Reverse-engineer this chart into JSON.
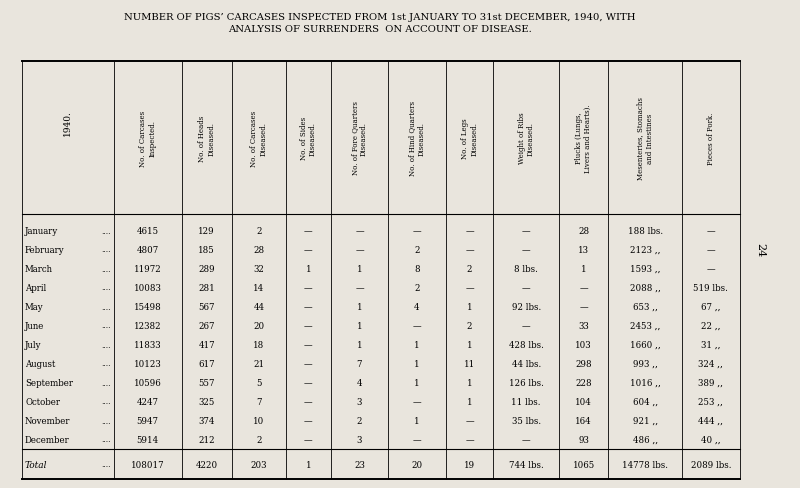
{
  "title_line1": "NUMBER OF PIGS’ CARCASES INSPECTED FROM 1st JANUARY TO 31st DECEMBER, 1940, WITH",
  "title_line2": "ANALYSIS OF SURRENDERS  ON ACCOUNT OF DISEASE.",
  "bg_color": "#e9e5dd",
  "col_headers": [
    "No. of Carcases\nInspected.",
    "No. of Heads\nDiseased.",
    "No. of Carcases\nDiseased.",
    "No. of Sides\nDiseased.",
    "No. of Fore Quarters\nDiseased.",
    "No. of Hind Quarters\nDiseased.",
    "No. of Legs\nDiseased.",
    "Weight of Ribs\nDiseased.",
    "Plucks (Lungs,\nLivers and Hearts).",
    "Mesenteries, Stomachs\nand Intestines",
    "Pieces of Pork."
  ],
  "row_label_header": "1940.",
  "months": [
    "January",
    "February",
    "March",
    "April",
    "May",
    "June",
    "July",
    "August",
    "September",
    "October",
    "November",
    "December"
  ],
  "data": [
    [
      "4615",
      "129",
      "2",
      "—",
      "—",
      "—",
      "—",
      "—",
      "28",
      "188 lbs.",
      "—"
    ],
    [
      "4807",
      "185",
      "28",
      "—",
      "—",
      "2",
      "—",
      "—",
      "13",
      "2123 ,,",
      "—"
    ],
    [
      "11972",
      "289",
      "32",
      "1",
      "1",
      "8",
      "2",
      "8 lbs.",
      "1",
      "1593 ,,",
      "—"
    ],
    [
      "10083",
      "281",
      "14",
      "—",
      "—",
      "2",
      "—",
      "—",
      "—",
      "2088 ,,",
      "519 lbs."
    ],
    [
      "15498",
      "567",
      "44",
      "—",
      "1",
      "4",
      "1",
      "92 lbs.",
      "—",
      "653 ,,",
      "67 ,,"
    ],
    [
      "12382",
      "267",
      "20",
      "—",
      "1",
      "—",
      "2",
      "—",
      "33",
      "2453 ,,",
      "22 ,,"
    ],
    [
      "11833",
      "417",
      "18",
      "—",
      "1",
      "1",
      "1",
      "428 lbs.",
      "103",
      "1660 ,,",
      "31 ,,"
    ],
    [
      "10123",
      "617",
      "21",
      "—",
      "7",
      "1",
      "11",
      "44 lbs.",
      "298",
      "993 ,,",
      "324 ,,"
    ],
    [
      "10596",
      "557",
      "5",
      "—",
      "4",
      "1",
      "1",
      "126 lbs.",
      "228",
      "1016 ,,",
      "389 ,,"
    ],
    [
      "4247",
      "325",
      "7",
      "—",
      "3",
      "—",
      "1",
      "11 lbs.",
      "104",
      "604 ,,",
      "253 ,,"
    ],
    [
      "5947",
      "374",
      "10",
      "—",
      "2",
      "1",
      "—",
      "35 lbs.",
      "164",
      "921 ,,",
      "444 ,,"
    ],
    [
      "5914",
      "212",
      "2",
      "—",
      "3",
      "—",
      "—",
      "—",
      "93",
      "486 ,,",
      "40 ,,"
    ]
  ],
  "total_row": [
    "108017",
    "4220",
    "203",
    "1",
    "23",
    "20",
    "19",
    "744 lbs.",
    "1065",
    "14778 lbs.",
    "2089 lbs."
  ],
  "total_label": "Total",
  "page_number": "24"
}
